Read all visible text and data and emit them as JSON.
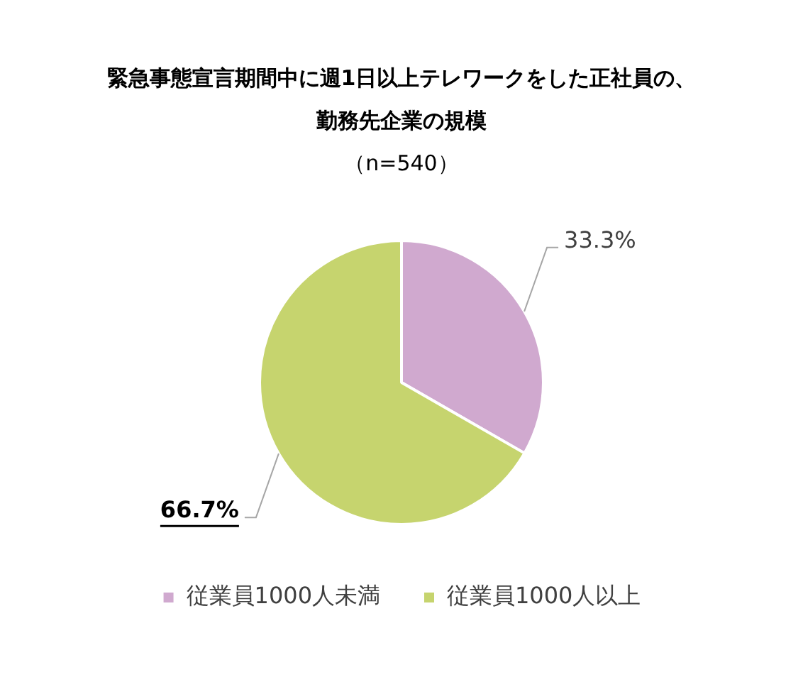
{
  "chart_data": {
    "type": "pie",
    "title": "緊急事態宣言期間中に週1日以上テレワークをした正社員の、勤務先企業の規模",
    "subtitle": "（n=540）",
    "categories": [
      "従業員1000人未満",
      "従業員1000人以上"
    ],
    "values": [
      33.3,
      66.7
    ],
    "colors": [
      "#d0a9cf",
      "#c6d46e"
    ],
    "value_labels": [
      "33.3%",
      "66.7%"
    ],
    "legend": "bottom"
  }
}
